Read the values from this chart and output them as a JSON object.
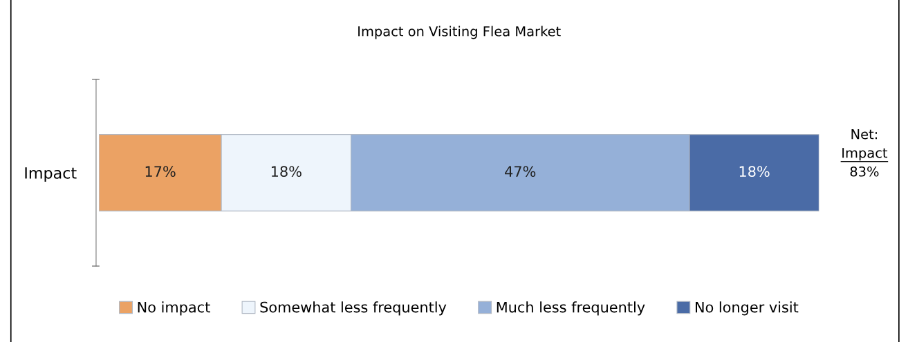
{
  "chart_data": {
    "type": "bar",
    "orientation": "horizontal",
    "stacked": true,
    "title": "Impact on Visiting Flea Market",
    "categories": [
      "Impact"
    ],
    "series": [
      {
        "name": "No impact",
        "color": "#eba264",
        "values": [
          17
        ],
        "value_labels": [
          "17%"
        ]
      },
      {
        "name": "Somewhat less frequently",
        "color": "#eef5fc",
        "values": [
          18
        ],
        "value_labels": [
          "18%"
        ]
      },
      {
        "name": "Much less frequently",
        "color": "#95b0d8",
        "values": [
          47
        ],
        "value_labels": [
          "47%"
        ]
      },
      {
        "name": "No longer visit",
        "color": "#4a6ba6",
        "values": [
          18
        ],
        "value_labels": [
          "18%"
        ]
      }
    ],
    "tick_labels": "y",
    "annotations": [
      "Net:\nImpact\n83%"
    ],
    "legend": "bottom",
    "grid": false
  }
}
